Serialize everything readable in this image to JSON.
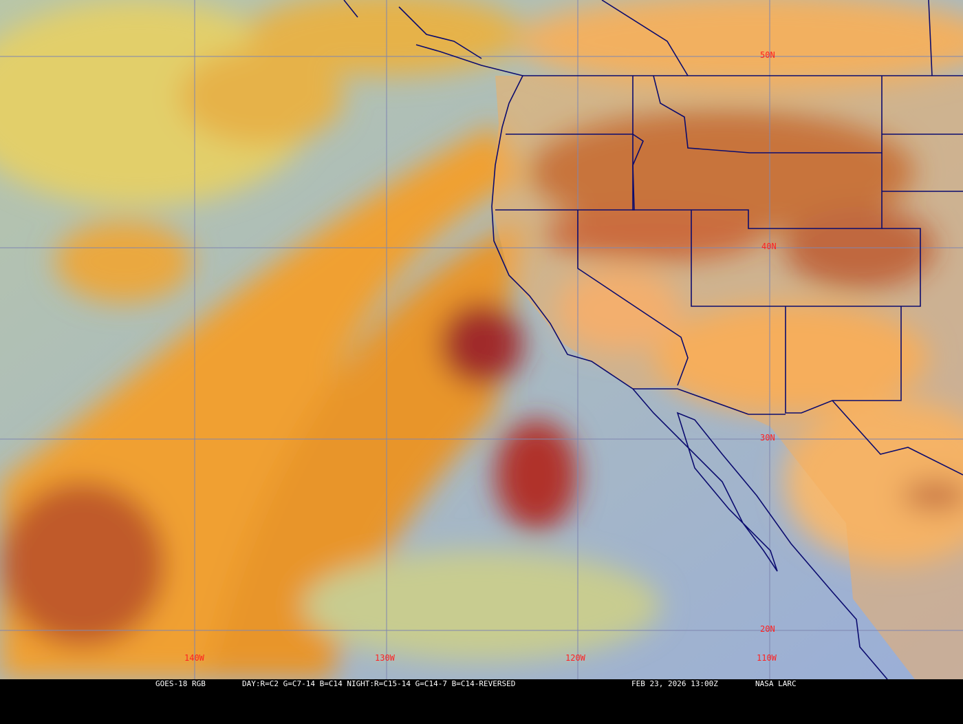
{
  "map": {
    "product": "GOES-18 RGB",
    "recipe": "DAY:R=C2 G=C7-14 B=C14 NIGHT:R=C15-14 G=C14-7 B=C14-REVERSED",
    "timestamp": "FEB 23, 2026 13:00Z",
    "credit": "NASA LARC",
    "latitude_labels": [
      "50N",
      "40N",
      "30N",
      "20N"
    ],
    "longitude_labels": [
      "140W",
      "130W",
      "120W",
      "110W"
    ],
    "colors": {
      "ocean": "#9fb8b4",
      "cloud_orange": "#f0a030",
      "cloud_yellow": "#e6d264",
      "cloud_red": "#9a1c1c",
      "land": "#f6ae5c",
      "boundaries": "#0a0a6e",
      "grid": "#7f86b0",
      "label": "#ff2020"
    }
  }
}
